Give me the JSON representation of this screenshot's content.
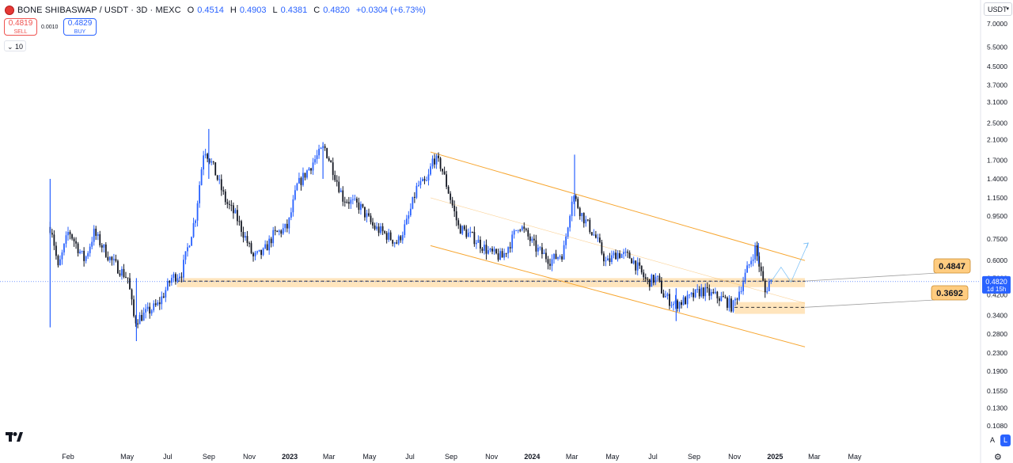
{
  "header": {
    "symbol_text": "BONE SHIBASWAP / USDT · 3D · MEXC",
    "o_key": "O",
    "o_val": "0.4514",
    "h_key": "H",
    "h_val": "0.4903",
    "l_key": "L",
    "l_val": "0.4381",
    "c_key": "C",
    "c_val": "0.4820",
    "change": "+0.0304 (+6.73%)"
  },
  "trade": {
    "sell_price": "0.4819",
    "sell_label": "SELL",
    "spread": "0.0010",
    "buy_price": "0.4829",
    "buy_label": "BUY"
  },
  "interval_button": "10",
  "currency_select": "USDT",
  "bottom_right": {
    "auto_label": "A",
    "log_label": "L"
  },
  "colors": {
    "up": "#2962ff",
    "down": "#131722",
    "channel": "#f7a630",
    "zone_fill": "#ffe0b2",
    "label_fill": "#ffcc80",
    "price_tag": "#2962ff"
  },
  "chart_data": {
    "type": "candlestick",
    "scale": "log",
    "y_ticks": [
      "7.0000",
      "5.5000",
      "4.5000",
      "3.7000",
      "3.1000",
      "2.5000",
      "2.1000",
      "1.7000",
      "1.4000",
      "1.1500",
      "0.9500",
      "0.7500",
      "0.6000",
      "0.5000",
      "0.4200",
      "0.3400",
      "0.2800",
      "0.2300",
      "0.1900",
      "0.1550",
      "0.1300",
      "0.1080"
    ],
    "x_labels": [
      "Feb",
      "May",
      "Jul",
      "Sep",
      "Nov",
      "2023",
      "Mar",
      "May",
      "Jul",
      "Sep",
      "Nov",
      "2024",
      "Mar",
      "May",
      "Jul",
      "Sep",
      "Nov",
      "2025",
      "Mar",
      "May"
    ],
    "x_label_dates": [
      "2022-02-01",
      "2022-05-01",
      "2022-07-01",
      "2022-09-01",
      "2022-11-01",
      "2023-01-01",
      "2023-03-01",
      "2023-05-01",
      "2023-07-01",
      "2023-09-01",
      "2023-11-01",
      "2024-01-01",
      "2024-03-01",
      "2024-05-01",
      "2024-07-01",
      "2024-09-01",
      "2024-11-01",
      "2025-01-01",
      "2025-03-01",
      "2025-05-01"
    ],
    "anchors": [
      {
        "date": "2022-01-10",
        "price": 0.85
      },
      {
        "date": "2022-01-20",
        "price": 0.55
      },
      {
        "date": "2022-02-05",
        "price": 0.82
      },
      {
        "date": "2022-03-01",
        "price": 0.6
      },
      {
        "date": "2022-03-15",
        "price": 0.8
      },
      {
        "date": "2022-04-10",
        "price": 0.6
      },
      {
        "date": "2022-05-05",
        "price": 0.5
      },
      {
        "date": "2022-05-15",
        "price": 0.32
      },
      {
        "date": "2022-06-20",
        "price": 0.38
      },
      {
        "date": "2022-07-10",
        "price": 0.5
      },
      {
        "date": "2022-07-25",
        "price": 0.53
      },
      {
        "date": "2022-08-15",
        "price": 0.95
      },
      {
        "date": "2022-08-28",
        "price": 1.95
      },
      {
        "date": "2022-09-10",
        "price": 1.6
      },
      {
        "date": "2022-09-30",
        "price": 1.1
      },
      {
        "date": "2022-10-15",
        "price": 0.95
      },
      {
        "date": "2022-10-30",
        "price": 0.75
      },
      {
        "date": "2022-11-10",
        "price": 0.62
      },
      {
        "date": "2022-11-25",
        "price": 0.65
      },
      {
        "date": "2022-12-10",
        "price": 0.78
      },
      {
        "date": "2023-01-01",
        "price": 0.85
      },
      {
        "date": "2023-01-15",
        "price": 1.3
      },
      {
        "date": "2023-02-10",
        "price": 1.7
      },
      {
        "date": "2023-02-25",
        "price": 1.95
      },
      {
        "date": "2023-03-10",
        "price": 1.55
      },
      {
        "date": "2023-03-25",
        "price": 1.15
      },
      {
        "date": "2023-04-20",
        "price": 1.05
      },
      {
        "date": "2023-05-10",
        "price": 0.85
      },
      {
        "date": "2023-05-25",
        "price": 0.8
      },
      {
        "date": "2023-06-15",
        "price": 0.72
      },
      {
        "date": "2023-06-30",
        "price": 0.9
      },
      {
        "date": "2023-07-15",
        "price": 1.3
      },
      {
        "date": "2023-07-30",
        "price": 1.35
      },
      {
        "date": "2023-08-08",
        "price": 1.75
      },
      {
        "date": "2023-08-20",
        "price": 1.6
      },
      {
        "date": "2023-09-01",
        "price": 1.2
      },
      {
        "date": "2023-09-15",
        "price": 0.85
      },
      {
        "date": "2023-10-10",
        "price": 0.75
      },
      {
        "date": "2023-11-01",
        "price": 0.65
      },
      {
        "date": "2023-11-20",
        "price": 0.62
      },
      {
        "date": "2023-12-05",
        "price": 0.75
      },
      {
        "date": "2023-12-15",
        "price": 0.88
      },
      {
        "date": "2024-01-10",
        "price": 0.68
      },
      {
        "date": "2024-02-01",
        "price": 0.6
      },
      {
        "date": "2024-02-20",
        "price": 0.65
      },
      {
        "date": "2024-03-05",
        "price": 1.2
      },
      {
        "date": "2024-03-20",
        "price": 0.95
      },
      {
        "date": "2024-04-10",
        "price": 0.75
      },
      {
        "date": "2024-04-25",
        "price": 0.58
      },
      {
        "date": "2024-05-10",
        "price": 0.65
      },
      {
        "date": "2024-06-01",
        "price": 0.62
      },
      {
        "date": "2024-06-25",
        "price": 0.48
      },
      {
        "date": "2024-07-10",
        "price": 0.5
      },
      {
        "date": "2024-07-20",
        "price": 0.42
      },
      {
        "date": "2024-08-05",
        "price": 0.38
      },
      {
        "date": "2024-08-25",
        "price": 0.4
      },
      {
        "date": "2024-09-15",
        "price": 0.44
      },
      {
        "date": "2024-10-01",
        "price": 0.42
      },
      {
        "date": "2024-10-20",
        "price": 0.4
      },
      {
        "date": "2024-11-01",
        "price": 0.37
      },
      {
        "date": "2024-11-15",
        "price": 0.47
      },
      {
        "date": "2024-12-05",
        "price": 0.68
      },
      {
        "date": "2024-12-12",
        "price": 0.56
      },
      {
        "date": "2024-12-20",
        "price": 0.43
      },
      {
        "date": "2024-12-26",
        "price": 0.482
      }
    ],
    "wicks": [
      {
        "date": "2022-01-05",
        "low": 0.3,
        "high": 1.4
      },
      {
        "date": "2022-05-15",
        "low": 0.26,
        "high": 0.5
      },
      {
        "date": "2022-09-01",
        "low": 1.4,
        "high": 2.35
      },
      {
        "date": "2023-02-20",
        "low": 1.4,
        "high": 2.05
      },
      {
        "date": "2024-03-05",
        "low": 0.95,
        "high": 1.8
      },
      {
        "date": "2024-08-05",
        "low": 0.32,
        "high": 0.45
      },
      {
        "date": "2024-12-07",
        "low": 0.58,
        "high": 0.72
      }
    ],
    "channel": {
      "upper": [
        {
          "date": "2023-08-01",
          "price": 1.85
        },
        {
          "date": "2025-02-15",
          "price": 0.6
        }
      ],
      "lower": [
        {
          "date": "2023-08-01",
          "price": 0.7
        },
        {
          "date": "2025-02-15",
          "price": 0.245
        }
      ],
      "mid": [
        {
          "date": "2023-08-01",
          "price": 1.15
        },
        {
          "date": "2025-02-15",
          "price": 0.385
        }
      ]
    },
    "zones": [
      {
        "price_top": 0.5,
        "price_bottom": 0.455,
        "date_start": "2022-07-15",
        "date_end": "2025-02-15",
        "level": 0.4847
      },
      {
        "price_top": 0.39,
        "price_bottom": 0.345,
        "date_start": "2024-11-01",
        "date_end": "2025-02-15",
        "level": 0.3692
      }
    ],
    "projection": [
      {
        "date": "2024-12-26",
        "price": 0.482
      },
      {
        "date": "2025-01-10",
        "price": 0.56
      },
      {
        "date": "2025-01-25",
        "price": 0.48
      },
      {
        "date": "2025-02-20",
        "price": 0.72
      }
    ],
    "level_labels": [
      "0.4847",
      "0.3692"
    ],
    "last_price": {
      "value": "0.4820",
      "countdown": "1d 15h"
    }
  }
}
